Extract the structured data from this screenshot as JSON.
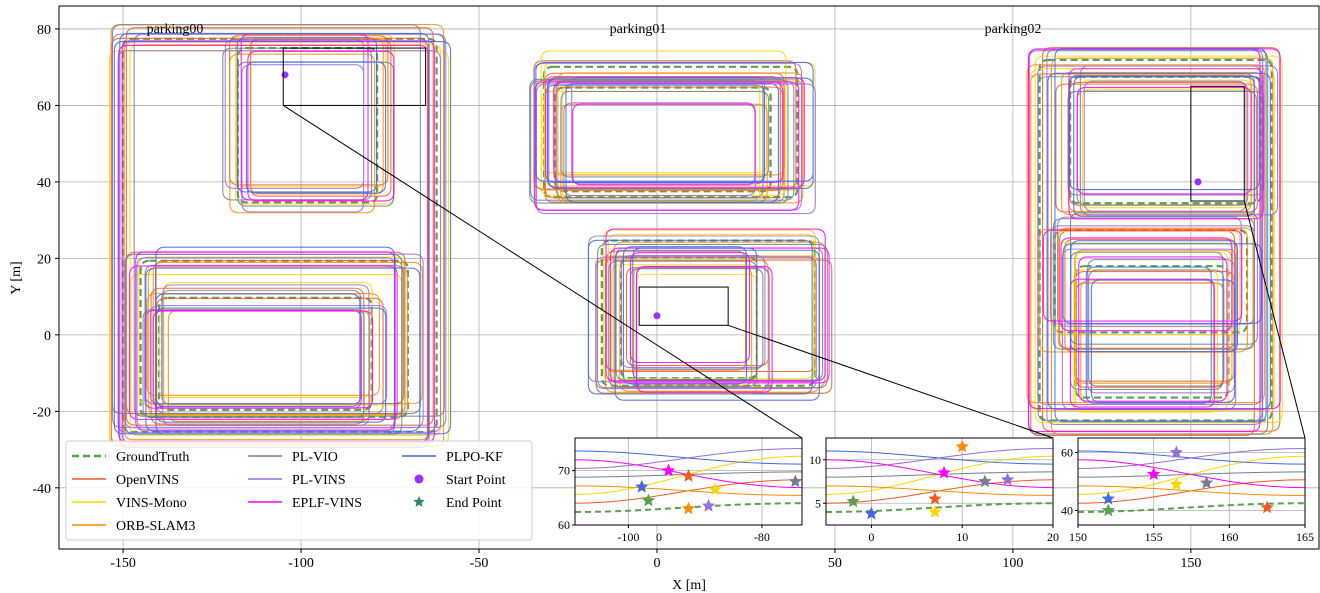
{
  "chart_data": {
    "type": "line",
    "xlabel": "X [m]",
    "ylabel": "Y [m]",
    "xlim": [
      -168,
      186
    ],
    "ylim": [
      -56,
      86
    ],
    "xticks": [
      -150,
      -100,
      -50,
      0,
      50,
      100,
      150
    ],
    "yticks": [
      -40,
      -20,
      0,
      20,
      40,
      60,
      80
    ],
    "grid": true,
    "legend_position": "bottom-left",
    "annotations": [
      {
        "text": "parking00",
        "x": -132,
        "y": 78
      },
      {
        "text": "parking01",
        "x": -6,
        "y": 78
      },
      {
        "text": "parking02",
        "x": 98,
        "y": 78
      }
    ],
    "series": [
      {
        "name": "GroundTruth",
        "color": "#59a14f",
        "style": "dashed"
      },
      {
        "name": "OpenVINS",
        "color": "#f15a22",
        "style": "solid"
      },
      {
        "name": "VINS-Mono",
        "color": "#ffd700",
        "style": "solid"
      },
      {
        "name": "ORB-SLAM3",
        "color": "#ff8c00",
        "style": "solid"
      },
      {
        "name": "PL-VIO",
        "color": "#708090",
        "style": "solid"
      },
      {
        "name": "PL-VINS",
        "color": "#9370db",
        "style": "solid"
      },
      {
        "name": "EPLF-VINS",
        "color": "#ff00ff",
        "style": "solid"
      },
      {
        "name": "PLPO-KF",
        "color": "#4169e1",
        "style": "solid"
      },
      {
        "name": "Start Point",
        "color": "#9b30ff",
        "style": "marker-circle"
      },
      {
        "name": "End Point",
        "color": "#2e8b57",
        "style": "marker-star"
      }
    ],
    "zoom_boxes": [
      {
        "xlim": [
          -105,
          -65
        ],
        "ylim": [
          60,
          75
        ]
      },
      {
        "xlim": [
          -5,
          20
        ],
        "ylim": [
          2.5,
          12.5
        ]
      },
      {
        "xlim": [
          150,
          165
        ],
        "ylim": [
          35,
          65
        ]
      }
    ],
    "insets": [
      {
        "xlim": [
          -108,
          -74
        ],
        "ylim": [
          60,
          76
        ],
        "xticks": [
          -100,
          -80
        ],
        "xtick_labels": [
          "-100",
          "-80"
        ],
        "extra_tick_labels": [
          "0"
        ],
        "yticks": [
          60,
          70
        ],
        "markers": [
          {
            "series": "EPLF-VINS",
            "x": -94,
            "y": 70,
            "shape": "star"
          },
          {
            "series": "OpenVINS",
            "x": -91,
            "y": 69,
            "shape": "star"
          },
          {
            "series": "PLPO-KF",
            "x": -98,
            "y": 67,
            "shape": "star"
          },
          {
            "series": "GroundTruth",
            "x": -97,
            "y": 64.5,
            "shape": "star"
          },
          {
            "series": "VINS-Mono",
            "x": -87,
            "y": 66.5,
            "shape": "star"
          },
          {
            "series": "ORB-SLAM3",
            "x": -91,
            "y": 63,
            "shape": "star"
          },
          {
            "series": "PL-VIO",
            "x": -75,
            "y": 68,
            "shape": "star"
          },
          {
            "series": "PL-VINS",
            "x": -88,
            "y": 63.5,
            "shape": "star"
          }
        ]
      },
      {
        "xlim": [
          -5,
          20
        ],
        "ylim": [
          2.5,
          12.5
        ],
        "xticks": [
          0,
          10,
          20
        ],
        "yticks": [
          5,
          10
        ],
        "markers": [
          {
            "series": "ORB-SLAM3",
            "x": 10,
            "y": 11.5,
            "shape": "star"
          },
          {
            "series": "EPLF-VINS",
            "x": 8,
            "y": 8.5,
            "shape": "star"
          },
          {
            "series": "PL-VIO",
            "x": 12.5,
            "y": 7.5,
            "shape": "star"
          },
          {
            "series": "PL-VINS",
            "x": 15,
            "y": 7.7,
            "shape": "star"
          },
          {
            "series": "GroundTruth",
            "x": -2,
            "y": 5.2,
            "shape": "star"
          },
          {
            "series": "OpenVINS",
            "x": 7,
            "y": 5.5,
            "shape": "star"
          },
          {
            "series": "VINS-Mono",
            "x": 7,
            "y": 4,
            "shape": "star"
          },
          {
            "series": "PLPO-KF",
            "x": 0,
            "y": 3.8,
            "shape": "star"
          }
        ]
      },
      {
        "xlim": [
          150,
          165
        ],
        "ylim": [
          35,
          65
        ],
        "xticks": [
          150,
          155,
          160,
          165
        ],
        "yticks": [
          40,
          60
        ],
        "markers": [
          {
            "series": "PL-VINS",
            "x": 156.5,
            "y": 60,
            "shape": "star"
          },
          {
            "series": "EPLF-VINS",
            "x": 155,
            "y": 52.5,
            "shape": "star"
          },
          {
            "series": "VINS-Mono",
            "x": 156.5,
            "y": 49,
            "shape": "star"
          },
          {
            "series": "PL-VIO",
            "x": 158.5,
            "y": 49.5,
            "shape": "star"
          },
          {
            "series": "PLPO-KF",
            "x": 152,
            "y": 44,
            "shape": "star"
          },
          {
            "series": "GroundTruth",
            "x": 152,
            "y": 40,
            "shape": "star"
          },
          {
            "series": "OpenVINS",
            "x": 162.5,
            "y": 41,
            "shape": "star"
          }
        ]
      }
    ]
  }
}
